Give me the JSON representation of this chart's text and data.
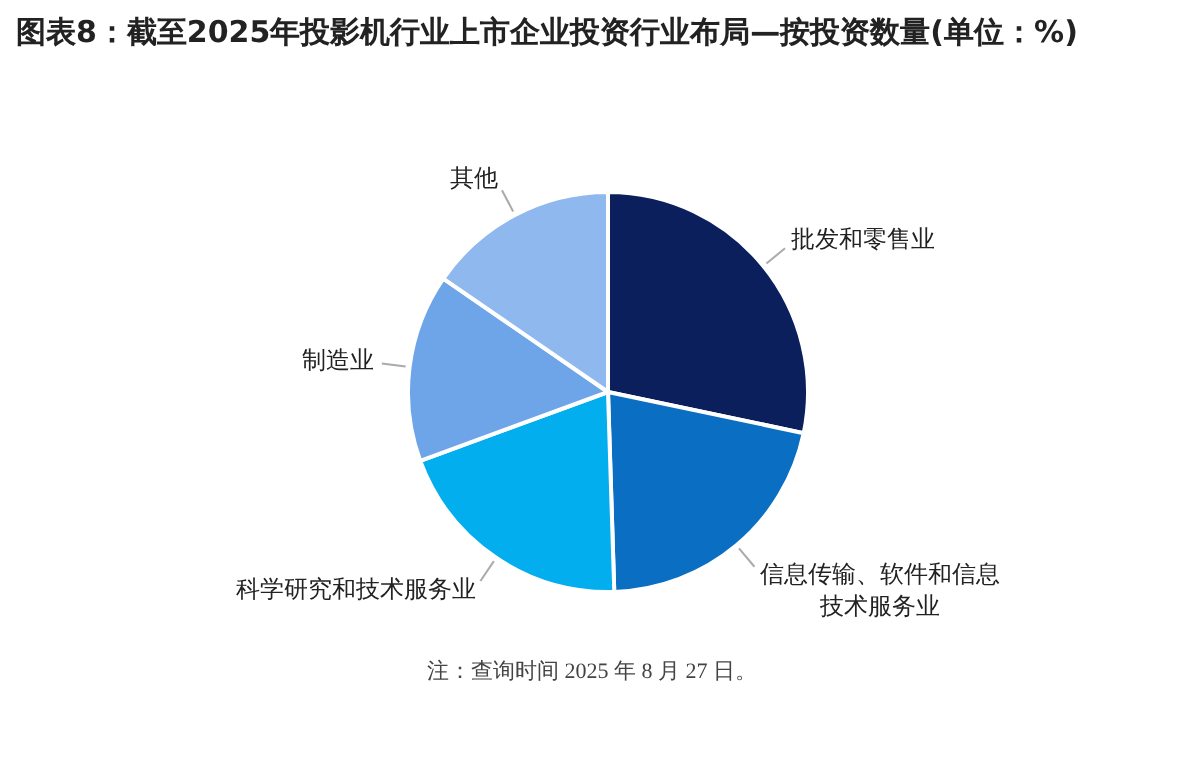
{
  "chart_data": {
    "type": "pie",
    "title": "图表8：截至2025年投影机行业上市企业投资行业布局—按投资数量(单位：%)",
    "categories": [
      "批发和零售业",
      "信息传输、软件和信息技术服务业",
      "科学研究和技术服务业",
      "制造业",
      "其他"
    ],
    "values": [
      28.3,
      21.2,
      19.9,
      15.2,
      15.4
    ],
    "colors": [
      "#0b1f5c",
      "#0a6fc2",
      "#03aeee",
      "#6ea5e8",
      "#8fb8ef"
    ],
    "legend": false,
    "annotations": [
      "注：查询时间 2025 年 8 月 27 日。"
    ]
  }
}
